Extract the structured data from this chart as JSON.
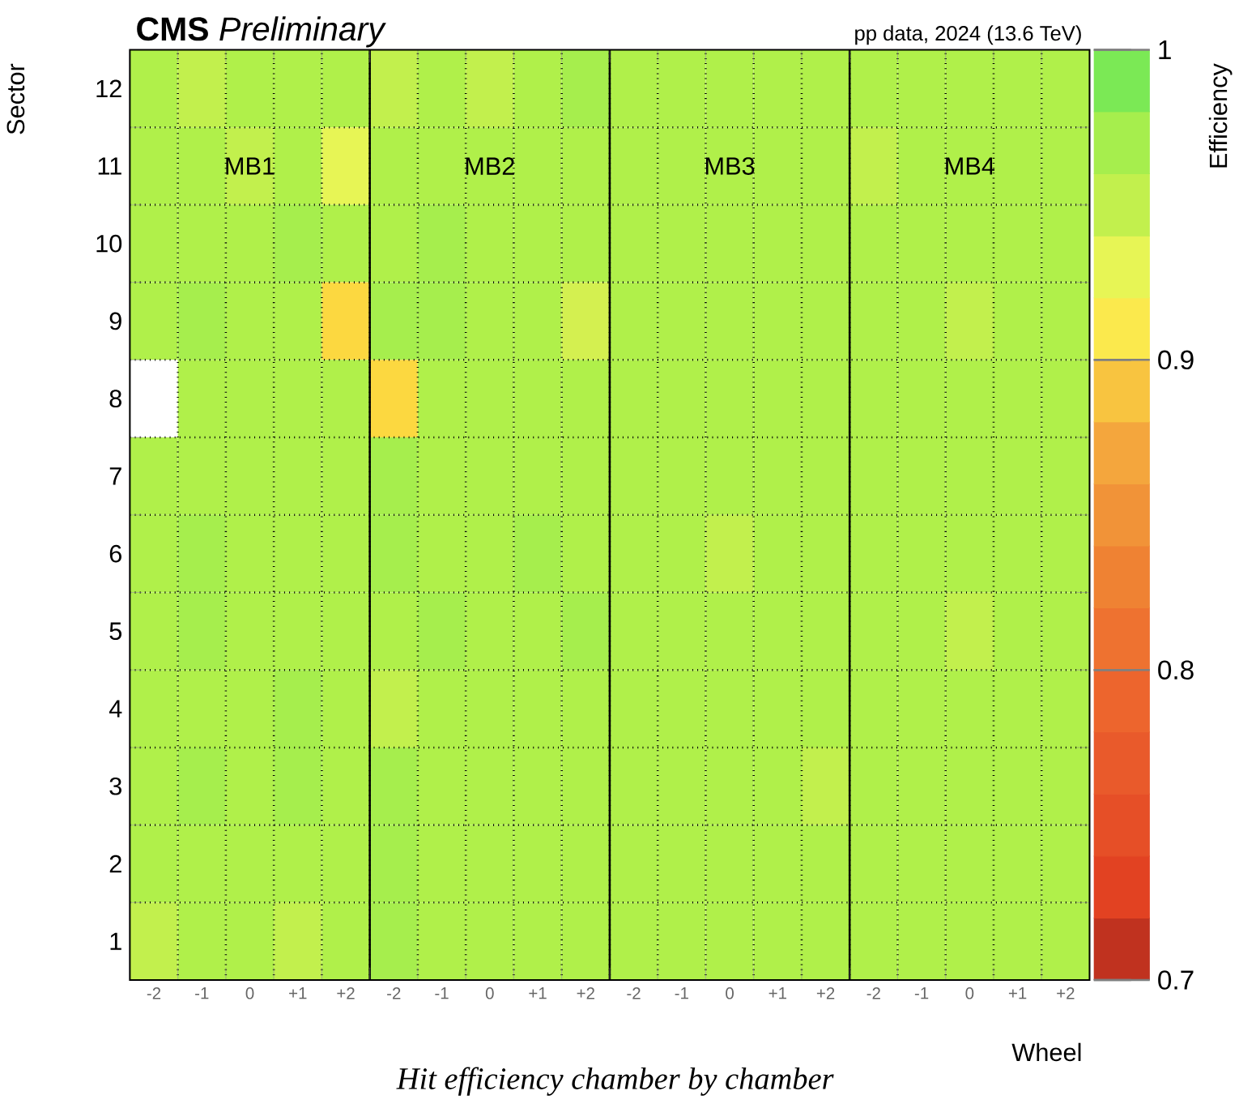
{
  "chart_data": {
    "type": "heatmap",
    "title": "**CMS** *Preliminary*",
    "subtitle": "pp data, 2024 (13.6 TeV)",
    "xlabel": "Wheel",
    "ylabel": "Sector",
    "clabel": "Efficiency",
    "annotations": [
      "MB1",
      "MB2",
      "MB3",
      "MB4",
      "Hit efficiency chamber by chamber"
    ],
    "categories": [
      "-2",
      "-1",
      "0",
      "+1",
      "+2",
      "-2",
      "-1",
      "0",
      "+1",
      "+2",
      "-2",
      "-1",
      "0",
      "+1",
      "+2",
      "-2",
      "-1",
      "0",
      "+1",
      "+2"
    ],
    "y_categories": [
      "12",
      "11",
      "10",
      "9",
      "8",
      "7",
      "6",
      "5",
      "4",
      "3",
      "2",
      "1"
    ],
    "cells": [
      [
        0.96,
        0.95,
        0.96,
        0.96,
        0.96,
        0.95,
        0.96,
        0.95,
        0.96,
        0.97,
        0.96,
        0.96,
        0.96,
        0.96,
        0.96,
        0.96,
        0.96,
        0.96,
        0.96,
        0.96
      ],
      [
        0.96,
        0.96,
        0.95,
        0.96,
        0.93,
        0.96,
        0.96,
        0.96,
        0.96,
        0.96,
        0.96,
        0.96,
        0.96,
        0.96,
        0.96,
        0.95,
        0.96,
        0.96,
        0.96,
        0.96
      ],
      [
        0.96,
        0.96,
        0.96,
        0.97,
        0.96,
        0.96,
        0.97,
        0.96,
        0.96,
        0.96,
        0.96,
        0.96,
        0.96,
        0.96,
        0.96,
        0.96,
        0.96,
        0.96,
        0.96,
        0.96
      ],
      [
        0.96,
        0.97,
        0.96,
        0.96,
        0.9,
        0.97,
        0.97,
        0.96,
        0.96,
        0.94,
        0.96,
        0.96,
        0.96,
        0.96,
        0.96,
        0.96,
        0.96,
        0.95,
        0.96,
        0.96
      ],
      [
        null,
        0.96,
        0.96,
        0.96,
        0.96,
        0.9,
        0.96,
        0.96,
        0.96,
        0.96,
        0.96,
        0.96,
        0.96,
        0.96,
        0.96,
        0.96,
        0.96,
        0.96,
        0.96,
        0.96
      ],
      [
        0.96,
        0.96,
        0.96,
        0.96,
        0.96,
        0.97,
        0.96,
        0.96,
        0.96,
        0.96,
        0.96,
        0.96,
        0.96,
        0.96,
        0.96,
        0.96,
        0.96,
        0.96,
        0.96,
        0.96
      ],
      [
        0.96,
        0.97,
        0.96,
        0.96,
        0.96,
        0.97,
        0.96,
        0.96,
        0.97,
        0.96,
        0.96,
        0.96,
        0.95,
        0.96,
        0.96,
        0.96,
        0.96,
        0.96,
        0.96,
        0.96
      ],
      [
        0.96,
        0.97,
        0.96,
        0.96,
        0.96,
        0.96,
        0.97,
        0.96,
        0.96,
        0.97,
        0.96,
        0.96,
        0.96,
        0.96,
        0.96,
        0.96,
        0.96,
        0.95,
        0.96,
        0.96
      ],
      [
        0.96,
        0.96,
        0.96,
        0.97,
        0.96,
        0.95,
        0.96,
        0.96,
        0.96,
        0.96,
        0.96,
        0.96,
        0.96,
        0.96,
        0.96,
        0.96,
        0.96,
        0.96,
        0.96,
        0.96
      ],
      [
        0.96,
        0.97,
        0.96,
        0.97,
        0.96,
        0.97,
        0.96,
        0.96,
        0.96,
        0.96,
        0.96,
        0.96,
        0.96,
        0.96,
        0.95,
        0.96,
        0.96,
        0.96,
        0.96,
        0.96
      ],
      [
        0.96,
        0.96,
        0.96,
        0.96,
        0.96,
        0.97,
        0.96,
        0.96,
        0.96,
        0.96,
        0.96,
        0.96,
        0.96,
        0.96,
        0.96,
        0.96,
        0.96,
        0.96,
        0.96,
        0.96
      ],
      [
        0.95,
        0.96,
        0.96,
        0.95,
        0.96,
        0.97,
        0.96,
        0.96,
        0.96,
        0.96,
        0.96,
        0.96,
        0.96,
        0.96,
        0.96,
        0.96,
        0.96,
        0.96,
        0.96,
        0.96
      ]
    ],
    "clim": [
      0.7,
      1
    ],
    "cticks": [
      0.7,
      0.8,
      0.9,
      1
    ],
    "grid": true
  }
}
